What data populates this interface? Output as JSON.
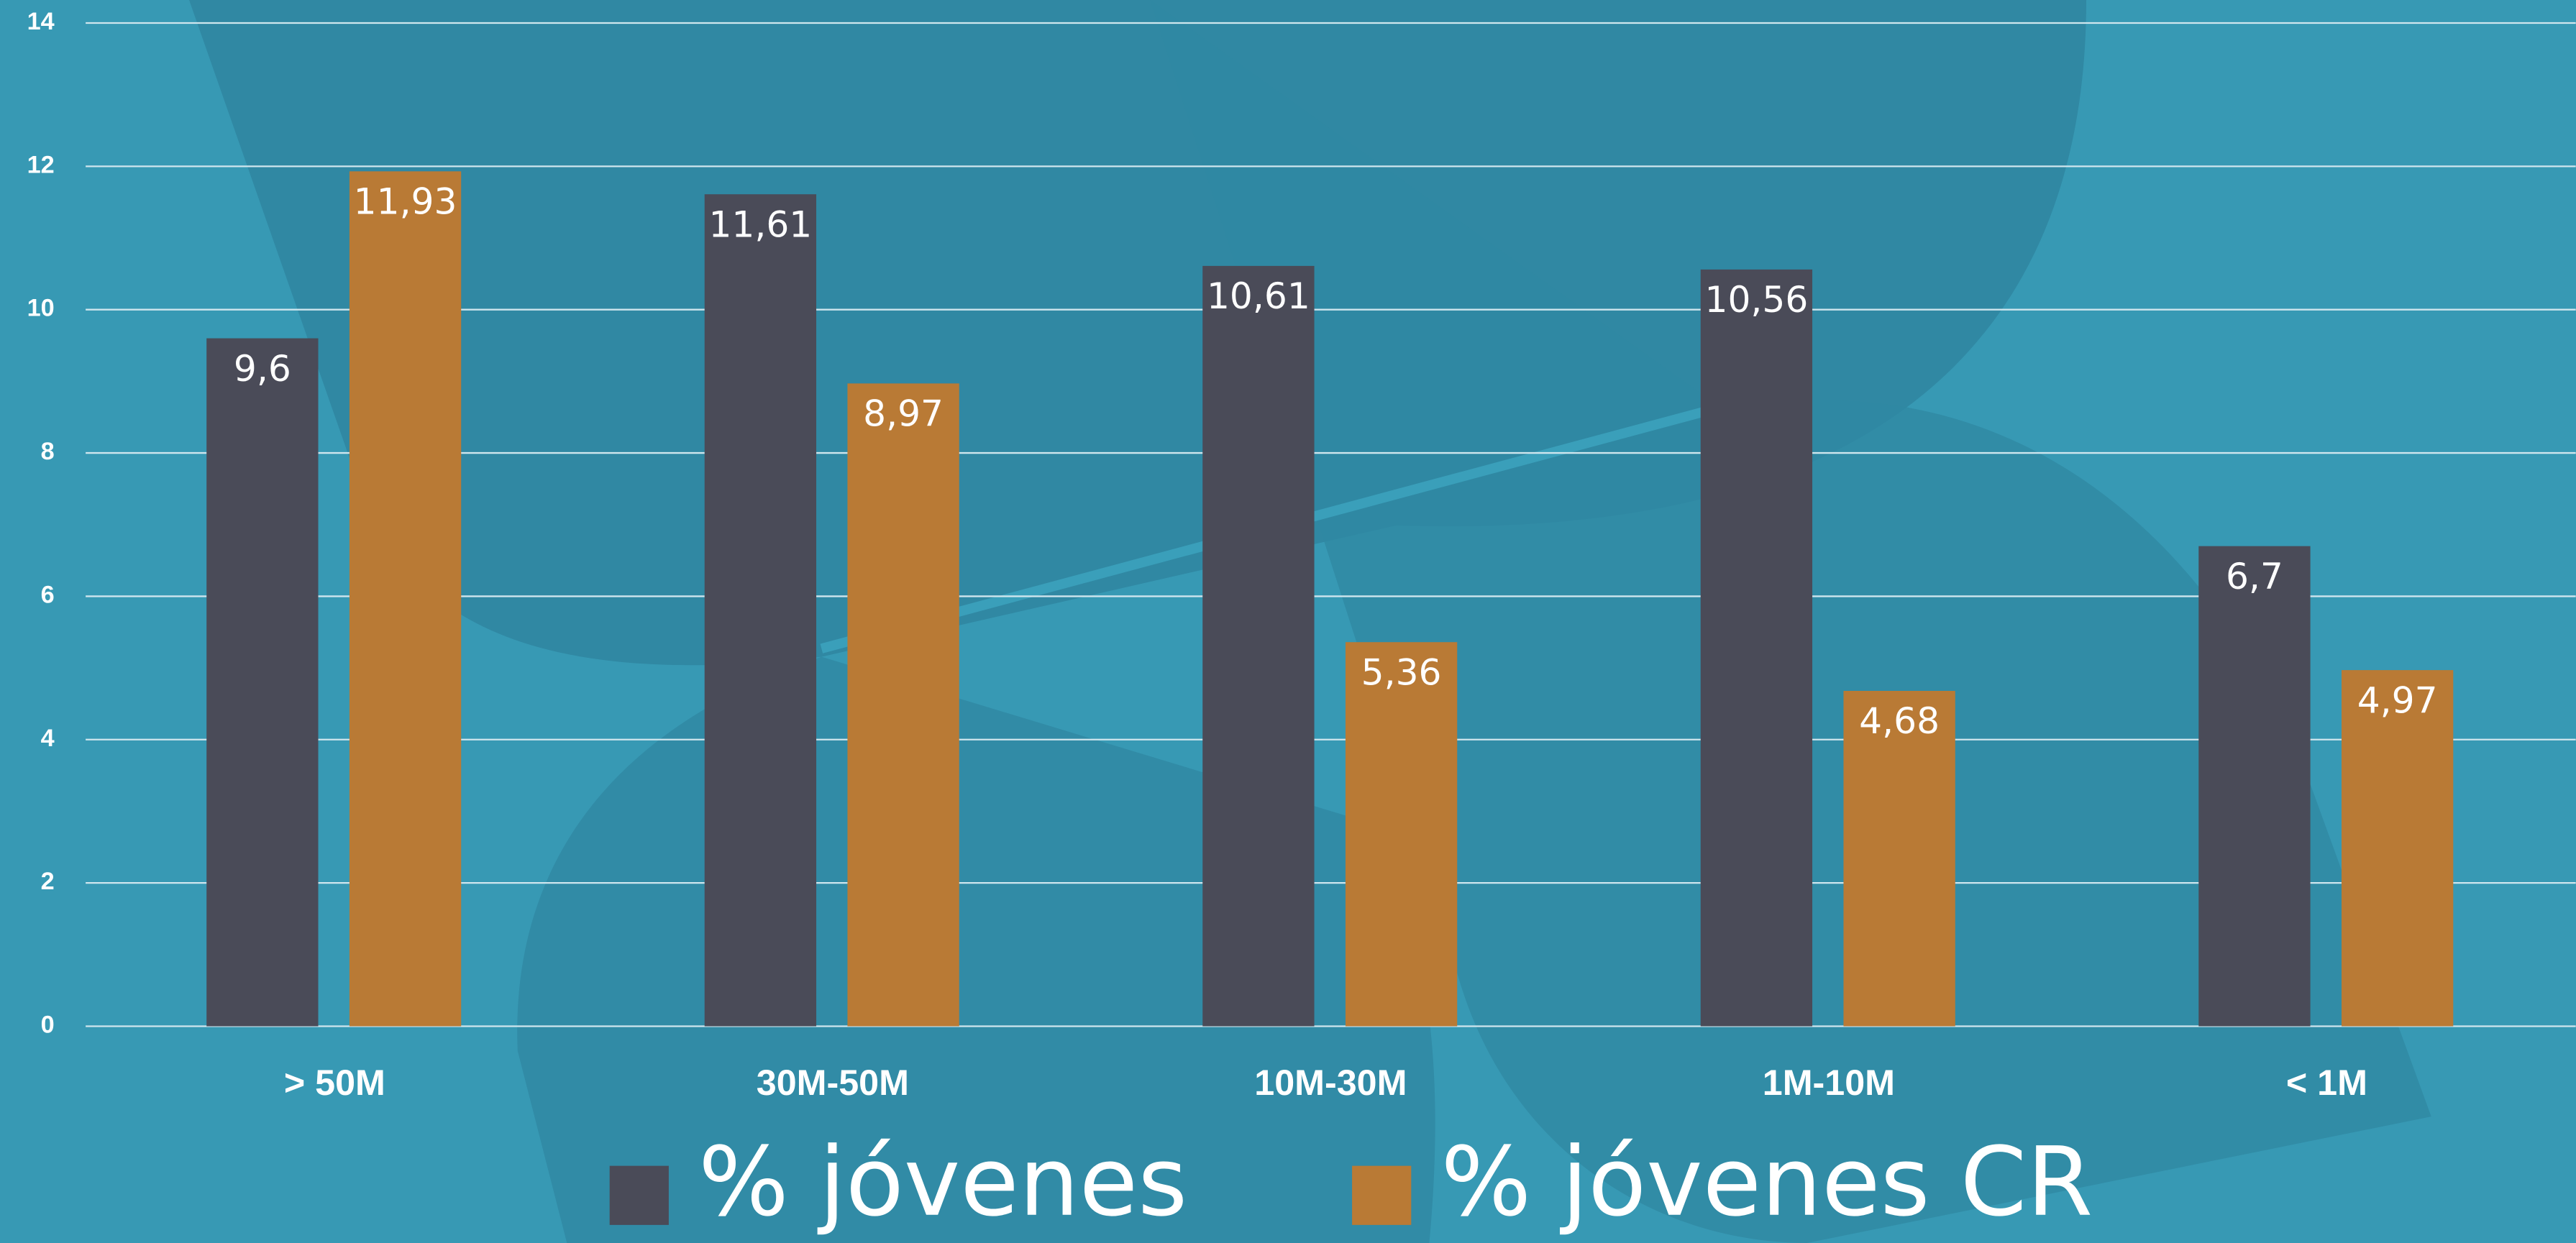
{
  "chart_data": {
    "type": "bar",
    "categories": [
      "> 50M",
      "30M-50M",
      "10M-30M",
      "1M-10M",
      "< 1M"
    ],
    "series": [
      {
        "name": "% jóvenes",
        "color": "#4a4b58",
        "values": [
          9.6,
          11.61,
          10.61,
          10.56,
          6.7
        ],
        "value_labels": [
          "9,6",
          "11,61",
          "10,61",
          "10,56",
          "6,7"
        ]
      },
      {
        "name": "% jóvenes CR",
        "color": "#b97a35",
        "values": [
          11.93,
          8.97,
          5.36,
          4.68,
          4.97
        ],
        "value_labels": [
          "11,93",
          "8,97",
          "5,36",
          "4,68",
          "4,97"
        ]
      }
    ],
    "ylim": [
      0,
      14
    ],
    "yticks": [
      0,
      2,
      4,
      6,
      8,
      10,
      12,
      14
    ],
    "grid": true,
    "legend": "bottom"
  }
}
